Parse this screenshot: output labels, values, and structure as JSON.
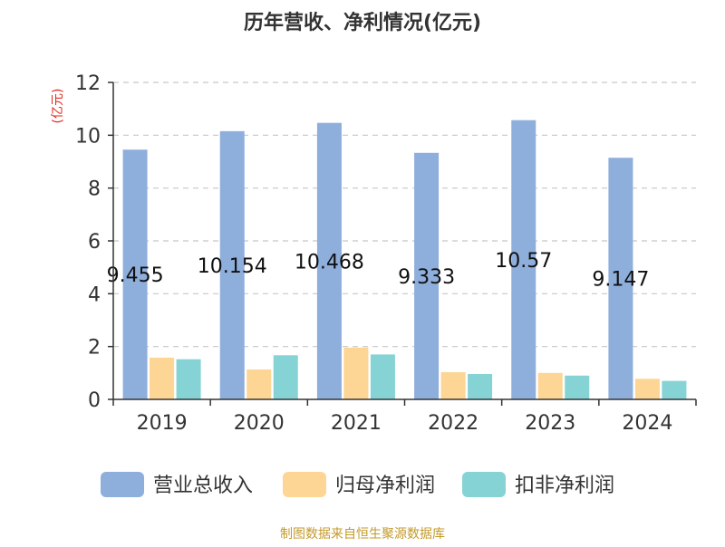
{
  "chart_data": {
    "type": "bar",
    "title": "历年营收、净利情况(亿元)",
    "ylabel": "(亿元)",
    "ylim": [
      0,
      12
    ],
    "yticks": [
      0,
      2,
      4,
      6,
      8,
      10,
      12
    ],
    "grid": true,
    "legend_position": "bottom",
    "categories": [
      "2019",
      "2020",
      "2021",
      "2022",
      "2023",
      "2024"
    ],
    "series": [
      {
        "name": "营业总收入",
        "color": "#8eaedb",
        "values": [
          9.455,
          10.154,
          10.468,
          9.333,
          10.57,
          9.147
        ],
        "labels": [
          "9.455",
          "10.154",
          "10.468",
          "9.333",
          "10.57",
          "9.147"
        ]
      },
      {
        "name": "归母净利润",
        "color": "#fdd594",
        "values": [
          1.58,
          1.13,
          1.96,
          1.03,
          1.0,
          0.78
        ]
      },
      {
        "name": "扣非净利润",
        "color": "#86d3d6",
        "values": [
          1.52,
          1.67,
          1.7,
          0.96,
          0.9,
          0.7
        ]
      }
    ]
  },
  "source": "制图数据来自恒生聚源数据库",
  "colors": {
    "title": "#333333",
    "ylabel": "#e0291e",
    "source": "#c49a2a",
    "axis": "#333333",
    "grid": "#c8c8c8"
  }
}
